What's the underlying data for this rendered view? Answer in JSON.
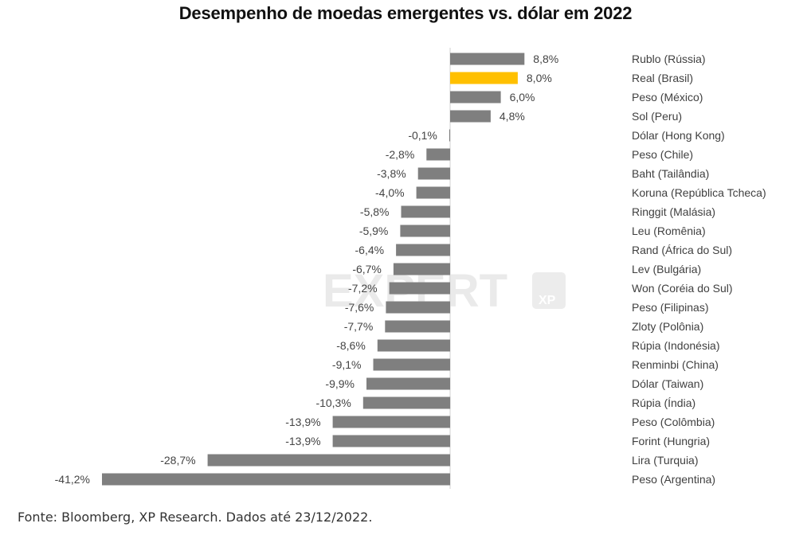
{
  "chart_data": {
    "type": "bar",
    "orientation": "horizontal",
    "title": "Desempenho de moedas emergentes vs. dólar em 2022",
    "xlabel": "",
    "ylabel": "",
    "unit": "%",
    "xlim": [
      -41.2,
      8.8
    ],
    "grid": false,
    "legend": "none",
    "categories": [
      "Rublo (Rússia)",
      "Real (Brasil)",
      "Peso (México)",
      "Sol (Peru)",
      "Dólar (Hong Kong)",
      "Peso (Chile)",
      "Baht (Tailândia)",
      "Koruna (República Tcheca)",
      "Ringgit (Malásia)",
      "Leu (Romênia)",
      "Rand (África do Sul)",
      "Lev (Bulgária)",
      "Won (Coréia do Sul)",
      "Peso (Filipinas)",
      "Zloty (Polônia)",
      "Rúpia (Indonésia)",
      "Renminbi (China)",
      "Dólar (Taiwan)",
      "Rúpia (Índia)",
      "Peso (Colômbia)",
      "Forint (Hungria)",
      "Lira (Turquia)",
      "Peso (Argentina)"
    ],
    "values": [
      8.8,
      8.0,
      6.0,
      4.8,
      -0.1,
      -2.8,
      -3.8,
      -4.0,
      -5.8,
      -5.9,
      -6.4,
      -6.7,
      -7.2,
      -7.6,
      -7.7,
      -8.6,
      -9.1,
      -9.9,
      -10.3,
      -13.9,
      -13.9,
      -28.7,
      -41.2
    ],
    "data_labels": [
      "8,8%",
      "8,0%",
      "6,0%",
      "4,8%",
      "-0,1%",
      "-2,8%",
      "-3,8%",
      "-4,0%",
      "-5,8%",
      "-5,9%",
      "-6,4%",
      "-6,7%",
      "-7,2%",
      "-7,6%",
      "-7,7%",
      "-8,6%",
      "-9,1%",
      "-9,9%",
      "-10,3%",
      "-13,9%",
      "-13,9%",
      "-28,7%",
      "-41,2%"
    ],
    "highlight_category": "Real (Brasil)",
    "colors": {
      "default": "#7f7f7f",
      "highlight": "#ffc000",
      "axis": "#e0e0e0"
    }
  },
  "watermark": {
    "text": "EXPERT",
    "badge": "XP"
  },
  "footer": {
    "source": "Fonte: Bloomberg, XP Research. Dados até 23/12/2022."
  }
}
